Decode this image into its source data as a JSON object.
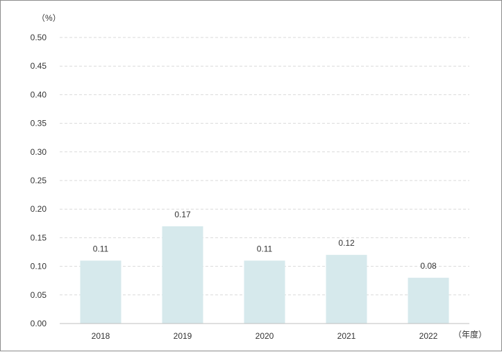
{
  "chart_data": {
    "type": "bar",
    "categories": [
      "2018",
      "2019",
      "2020",
      "2021",
      "2022"
    ],
    "values": [
      0.11,
      0.17,
      0.11,
      0.12,
      0.08
    ],
    "data_labels": [
      "0.11",
      "0.17",
      "0.11",
      "0.12",
      "0.08"
    ],
    "y_unit": "（%）",
    "x_unit": "（年度）",
    "ylim": [
      0,
      0.5
    ],
    "y_ticks": [
      "0.00",
      "0.05",
      "0.10",
      "0.15",
      "0.20",
      "0.25",
      "0.30",
      "0.35",
      "0.40",
      "0.45",
      "0.50"
    ],
    "grid": true,
    "grid_style": "dashed",
    "bar_color": "#d6e9ec",
    "grid_color": "#d9d9d9",
    "axis_color": "#bfbfbf"
  }
}
